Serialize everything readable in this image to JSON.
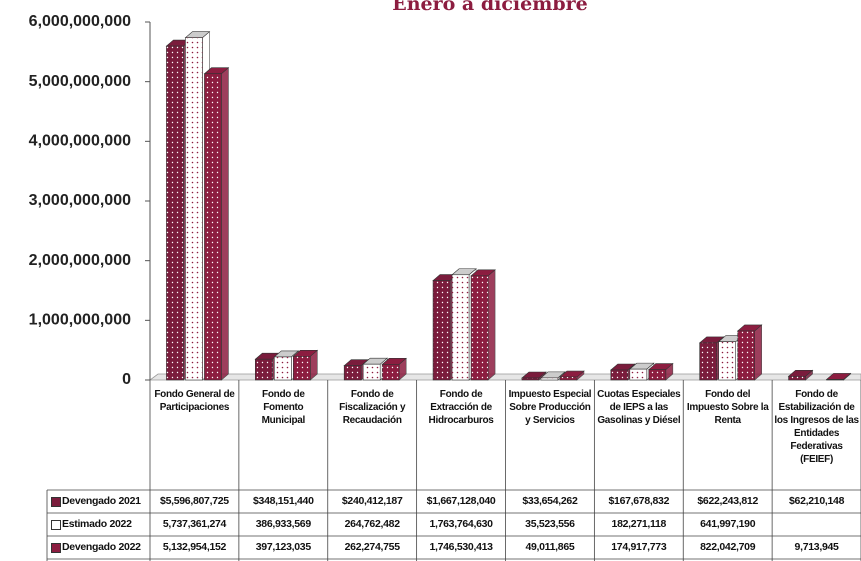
{
  "chart_data": {
    "type": "bar",
    "title": "Enero a diciembre",
    "categories": [
      "Fondo General de Participaciones",
      "Fondo de Fomento Municipal",
      "Fondo de Fiscalización y Recaudación",
      "Fondo de Extracción de Hidrocarburos",
      "Impuesto Especial Sobre Producción y Servicios",
      "Cuotas Especiales de IEPS a las Gasolinas y Diésel",
      "Fondo del Impuesto Sobre la Renta",
      "Fondo de Estabilización de los Ingresos de las Entidades Federativas (FEIEF)"
    ],
    "series": [
      {
        "name": "Devengado 2021",
        "color": "#7a1c3c",
        "values": [
          5596807725,
          348151440,
          240412187,
          1667128040,
          33654262,
          167678832,
          622243812,
          62210148
        ],
        "value_labels": [
          "$5,596,807,725",
          "$348,151,440",
          "$240,412,187",
          "$1,667,128,040",
          "$33,654,262",
          "$167,678,832",
          "$622,243,812",
          "$62,210,148"
        ]
      },
      {
        "name": "Estimado 2022",
        "color": "#ffffff",
        "values": [
          5737361274,
          386933569,
          264762482,
          1763764630,
          35523556,
          182271118,
          641997190,
          null
        ],
        "value_labels": [
          "5,737,361,274",
          "386,933,569",
          "264,762,482",
          "1,763,764,630",
          "35,523,556",
          "182,271,118",
          "641,997,190",
          null
        ]
      },
      {
        "name": "Devengado 2022",
        "color": "#8c1d40",
        "values": [
          5132954152,
          397123035,
          262274755,
          1746530413,
          49011865,
          174917773,
          822042709,
          9713945
        ],
        "value_labels": [
          "5,132,954,152",
          "397,123,035",
          "262,274,755",
          "1,746,530,413",
          "49,011,865",
          "174,917,773",
          "822,042,709",
          "9,713,945"
        ]
      }
    ],
    "ylim": [
      0,
      6000000000
    ],
    "yticks": [
      {
        "value": 0,
        "label": "0"
      },
      {
        "value": 1000000000,
        "label": "1,000,000,000"
      },
      {
        "value": 2000000000,
        "label": "2,000,000,000"
      },
      {
        "value": 3000000000,
        "label": "3,000,000,000"
      },
      {
        "value": 4000000000,
        "label": "4,000,000,000"
      },
      {
        "value": 5000000000,
        "label": "5,000,000,000"
      },
      {
        "value": 6000000000,
        "label": "6,000,000,000"
      }
    ]
  }
}
